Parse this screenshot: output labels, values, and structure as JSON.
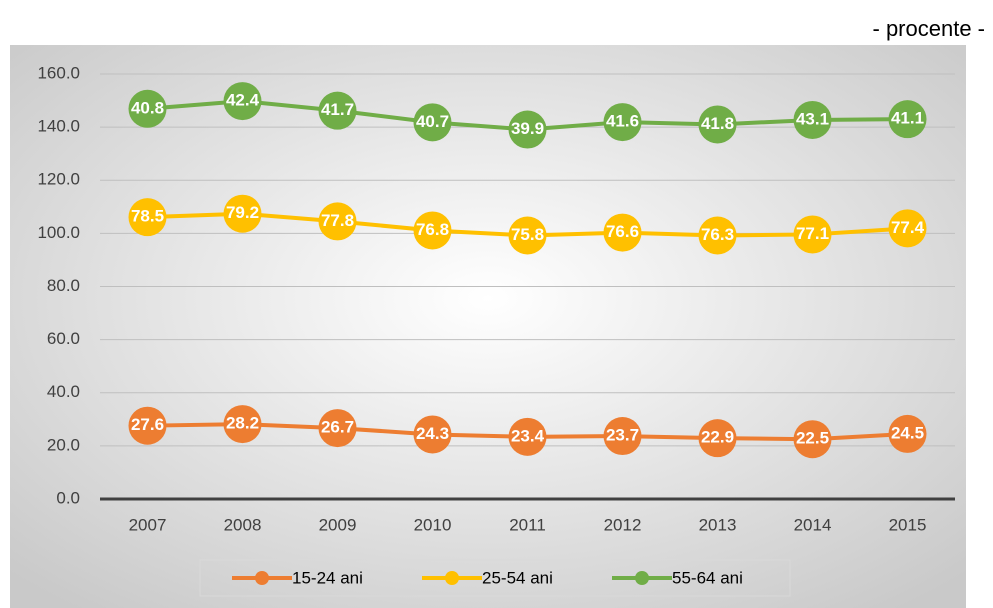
{
  "chart_data": {
    "type": "line",
    "stacked": true,
    "subtitle": "- procente -",
    "categories": [
      "2007",
      "2008",
      "2009",
      "2010",
      "2011",
      "2012",
      "2013",
      "2014",
      "2015"
    ],
    "series": [
      {
        "name": "15-24 ani",
        "color": "#ED7D31",
        "values": [
          27.6,
          28.2,
          26.7,
          24.3,
          23.4,
          23.7,
          22.9,
          22.5,
          24.5
        ]
      },
      {
        "name": "25-54 ani",
        "color": "#FFC000",
        "values": [
          78.5,
          79.2,
          77.8,
          76.8,
          75.8,
          76.6,
          76.3,
          77.1,
          77.4
        ]
      },
      {
        "name": "55-64 ani",
        "color": "#70AD47",
        "values": [
          40.8,
          42.4,
          41.7,
          40.7,
          39.9,
          41.6,
          41.8,
          43.1,
          41.1
        ]
      }
    ],
    "ylim": [
      0,
      160
    ],
    "yticks": [
      {
        "value": 0,
        "label": "0.0"
      },
      {
        "value": 20,
        "label": "20.0"
      },
      {
        "value": 40,
        "label": "40.0"
      },
      {
        "value": 60,
        "label": "60.0"
      },
      {
        "value": 80,
        "label": "80.0"
      },
      {
        "value": 100,
        "label": "100.0"
      },
      {
        "value": 120,
        "label": "120.0"
      },
      {
        "value": 140,
        "label": "140.0"
      },
      {
        "value": 160,
        "label": "160.0"
      }
    ],
    "grid": true,
    "legend": "bottom"
  }
}
